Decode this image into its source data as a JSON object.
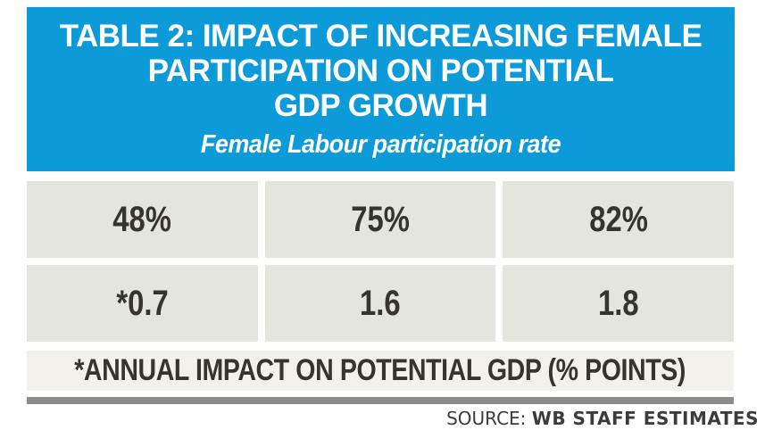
{
  "colors": {
    "header_bg": "#0c9ad9",
    "cell_bg": "#e4e5dc",
    "footnote_bg": "#f2f1ea",
    "divider_bar": "#8c8c8c",
    "title_text": "#ffffff",
    "cell_text": "#35342f",
    "source_text": "#3c3c3c"
  },
  "header": {
    "title_line1": "TABLE 2: IMPACT OF INCREASING FEMALE",
    "title_line2": "PARTICIPATION ON POTENTIAL",
    "title_line3": "GDP GROWTH",
    "subtitle": "Female Labour participation rate"
  },
  "table": {
    "participation_rates": [
      "48%",
      "75%",
      "82%"
    ],
    "gdp_impacts": [
      "*0.7",
      "1.6",
      "1.8"
    ],
    "footnote": "*ANNUAL IMPACT ON POTENTIAL GDP (% POINTS)"
  },
  "source": {
    "label": "SOURCE:",
    "value": "WB STAFF ESTIMATES"
  },
  "chart_data": {
    "type": "table",
    "title": "TABLE 2: IMPACT OF INCREASING FEMALE PARTICIPATION ON POTENTIAL GDP GROWTH",
    "subtitle": "Female Labour participation rate",
    "rows": [
      {
        "label": "Female labour participation rate",
        "values": [
          "48%",
          "75%",
          "82%"
        ]
      },
      {
        "label": "Annual impact on potential GDP (% points)",
        "values": [
          "*0.7",
          "1.6",
          "1.8"
        ]
      }
    ],
    "footnote": "*ANNUAL IMPACT ON POTENTIAL GDP (% POINTS)",
    "source": "SOURCE: WB STAFF ESTIMATES"
  }
}
